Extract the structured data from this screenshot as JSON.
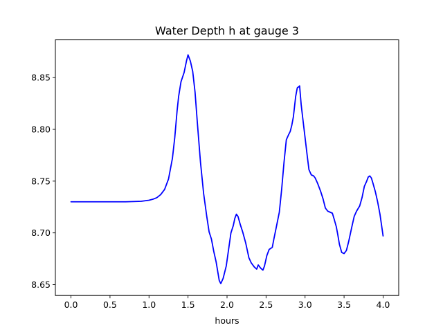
{
  "chart_data": {
    "type": "line",
    "title": "Water Depth h at gauge 3",
    "xlabel": "hours",
    "ylabel": "",
    "xlim": [
      -0.2,
      4.2
    ],
    "ylim": [
      8.6395,
      8.8865
    ],
    "xticks": [
      0.0,
      0.5,
      1.0,
      1.5,
      2.0,
      2.5,
      3.0,
      3.5,
      4.0
    ],
    "xtick_labels": [
      "0.0",
      "0.5",
      "1.0",
      "1.5",
      "2.0",
      "2.5",
      "3.0",
      "3.5",
      "4.0"
    ],
    "yticks": [
      8.65,
      8.7,
      8.75,
      8.8,
      8.85
    ],
    "ytick_labels": [
      "8.65",
      "8.70",
      "8.75",
      "8.80",
      "8.85"
    ],
    "grid": false,
    "legend": "none",
    "series": [
      {
        "color": "#0000ff",
        "x": [
          0.0,
          0.5,
          0.7,
          0.9,
          1.0,
          1.05,
          1.1,
          1.15,
          1.2,
          1.25,
          1.3,
          1.33,
          1.36,
          1.38,
          1.41,
          1.45,
          1.48,
          1.5,
          1.53,
          1.56,
          1.59,
          1.62,
          1.66,
          1.7,
          1.74,
          1.77,
          1.8,
          1.83,
          1.86,
          1.88,
          1.9,
          1.92,
          1.95,
          1.99,
          2.02,
          2.05,
          2.08,
          2.1,
          2.12,
          2.14,
          2.17,
          2.2,
          2.24,
          2.28,
          2.31,
          2.35,
          2.38,
          2.4,
          2.43,
          2.46,
          2.48,
          2.51,
          2.54,
          2.58,
          2.6,
          2.63,
          2.67,
          2.7,
          2.73,
          2.76,
          2.79,
          2.81,
          2.83,
          2.85,
          2.88,
          2.9,
          2.93,
          2.95,
          2.97,
          3.0,
          3.03,
          3.05,
          3.08,
          3.11,
          3.13,
          3.16,
          3.2,
          3.23,
          3.26,
          3.29,
          3.32,
          3.35,
          3.37,
          3.4,
          3.42,
          3.44,
          3.47,
          3.5,
          3.53,
          3.56,
          3.6,
          3.63,
          3.66,
          3.7,
          3.73,
          3.76,
          3.79,
          3.81,
          3.83,
          3.85,
          3.87,
          3.9,
          3.93,
          3.96,
          4.0
        ],
        "y": [
          8.73,
          8.73,
          8.73,
          8.7305,
          8.7315,
          8.7325,
          8.734,
          8.737,
          8.742,
          8.752,
          8.772,
          8.792,
          8.818,
          8.832,
          8.846,
          8.855,
          8.866,
          8.872,
          8.866,
          8.856,
          8.836,
          8.806,
          8.768,
          8.738,
          8.716,
          8.701,
          8.694,
          8.682,
          8.672,
          8.663,
          8.654,
          8.651,
          8.656,
          8.668,
          8.684,
          8.7,
          8.707,
          8.714,
          8.718,
          8.716,
          8.708,
          8.701,
          8.69,
          8.676,
          8.671,
          8.667,
          8.665,
          8.669,
          8.666,
          8.664,
          8.668,
          8.678,
          8.684,
          8.686,
          8.694,
          8.705,
          8.72,
          8.742,
          8.768,
          8.79,
          8.795,
          8.798,
          8.804,
          8.812,
          8.832,
          8.84,
          8.842,
          8.824,
          8.811,
          8.792,
          8.773,
          8.761,
          8.756,
          8.755,
          8.753,
          8.748,
          8.74,
          8.733,
          8.724,
          8.721,
          8.72,
          8.719,
          8.714,
          8.706,
          8.698,
          8.689,
          8.681,
          8.68,
          8.683,
          8.692,
          8.706,
          8.716,
          8.721,
          8.726,
          8.734,
          8.745,
          8.75,
          8.754,
          8.755,
          8.753,
          8.748,
          8.74,
          8.73,
          8.718,
          8.697
        ]
      }
    ]
  }
}
